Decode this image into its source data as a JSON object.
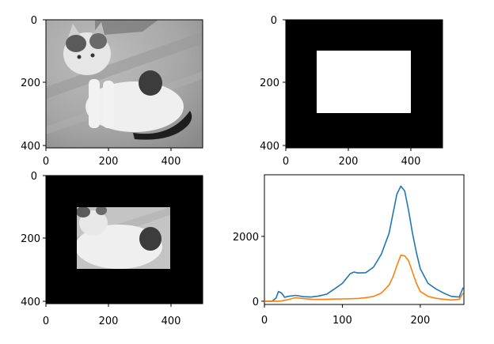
{
  "figure": {
    "panels": [
      {
        "kind": "image",
        "content": "grayscale photo of a cat",
        "xlim": [
          0,
          500
        ],
        "ylim": [
          400,
          0
        ],
        "xticks": [
          "0",
          "200",
          "400"
        ],
        "yticks": [
          "0",
          "200",
          "400"
        ]
      },
      {
        "kind": "image",
        "content": "binary mask (white rectangle on black)",
        "mask_rect": {
          "x0": 100,
          "x1": 400,
          "y0": 100,
          "y1": 300
        },
        "xlim": [
          0,
          500
        ],
        "ylim": [
          400,
          0
        ],
        "xticks": [
          "0",
          "200",
          "400"
        ],
        "yticks": [
          "0",
          "200",
          "400"
        ]
      },
      {
        "kind": "image",
        "content": "masked grayscale cat image",
        "mask_rect": {
          "x0": 100,
          "x1": 400,
          "y0": 100,
          "y1": 300
        },
        "xlim": [
          0,
          500
        ],
        "ylim": [
          400,
          0
        ],
        "xticks": [
          "0",
          "200",
          "400"
        ],
        "yticks": [
          "0",
          "200",
          "400"
        ]
      }
    ],
    "colors": {
      "series_full": "#1f77b4",
      "series_masked": "#ff7f0e",
      "mask_fill": "#000000",
      "mask_window": "#ffffff"
    }
  },
  "chart_data": {
    "type": "line",
    "title": "",
    "xlabel": "",
    "ylabel": "",
    "xlim": [
      0,
      256
    ],
    "ylim": [
      -100,
      3900
    ],
    "xticks": [
      "0",
      "100",
      "200"
    ],
    "yticks": [
      "0",
      "2000"
    ],
    "grid": false,
    "legend": "none",
    "x": [
      0,
      10,
      15,
      18,
      22,
      26,
      30,
      40,
      50,
      60,
      70,
      80,
      90,
      100,
      110,
      115,
      120,
      130,
      140,
      150,
      160,
      165,
      170,
      175,
      180,
      185,
      190,
      195,
      200,
      210,
      220,
      230,
      240,
      250,
      255
    ],
    "series": [
      {
        "values": [
          0,
          0,
          100,
          300,
          250,
          120,
          150,
          180,
          140,
          130,
          160,
          220,
          380,
          550,
          850,
          900,
          870,
          880,
          1050,
          1450,
          2100,
          2700,
          3300,
          3550,
          3400,
          2800,
          2100,
          1500,
          1000,
          550,
          380,
          250,
          150,
          130,
          420
        ]
      },
      {
        "values": [
          0,
          0,
          0,
          0,
          10,
          30,
          50,
          110,
          80,
          60,
          55,
          60,
          65,
          70,
          75,
          80,
          85,
          110,
          150,
          250,
          500,
          750,
          1100,
          1420,
          1400,
          1250,
          900,
          550,
          300,
          150,
          90,
          60,
          40,
          60,
          250
        ]
      }
    ]
  }
}
